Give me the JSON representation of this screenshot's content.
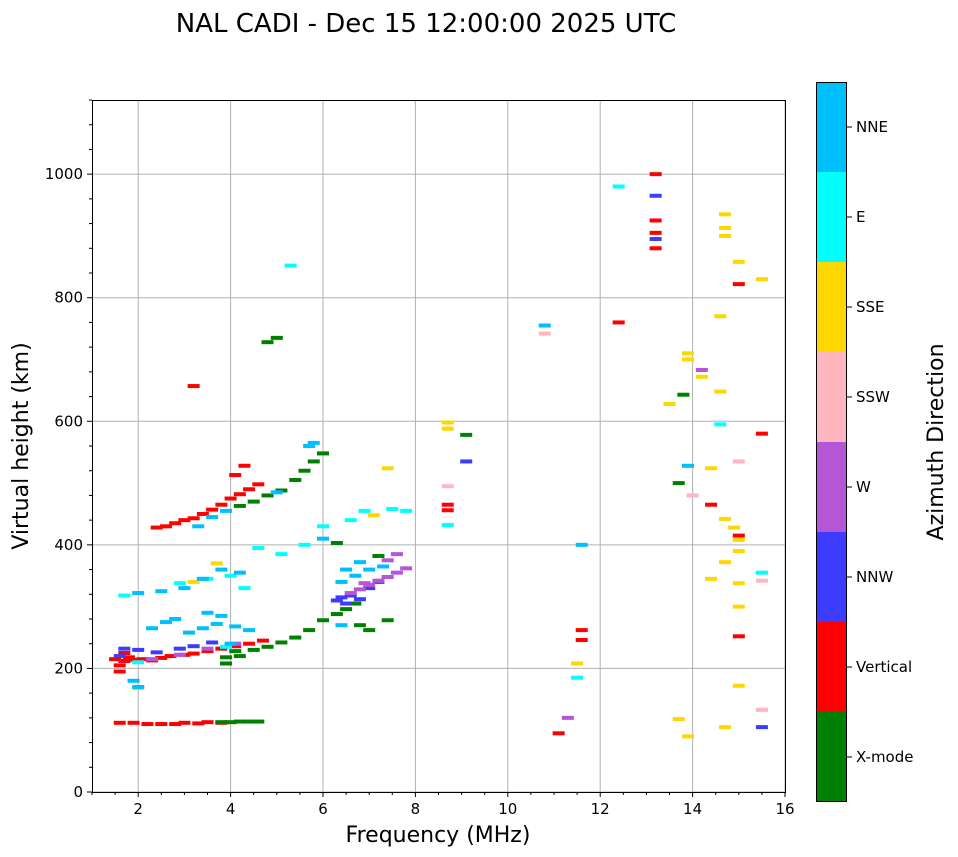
{
  "chart_data": {
    "type": "scatter",
    "title": "NAL CADI - Dec 15 12:00:00 2025 UTC",
    "xlabel": "Frequency (MHz)",
    "ylabel": "Virtual height (km)",
    "xlim": [
      1,
      16
    ],
    "ylim": [
      0,
      1120
    ],
    "xticks": [
      2,
      4,
      6,
      8,
      10,
      12,
      14,
      16
    ],
    "yticks": [
      0,
      200,
      400,
      600,
      800,
      1000
    ],
    "grid": true,
    "colorbar": {
      "title": "Azimuth Direction",
      "categories": [
        {
          "name": "X-mode",
          "color": "#008000"
        },
        {
          "name": "Vertical",
          "color": "#ff0000"
        },
        {
          "name": "NNW",
          "color": "#3c3cff"
        },
        {
          "name": "W",
          "color": "#b556d6"
        },
        {
          "name": "SSW",
          "color": "#ffb6c1"
        },
        {
          "name": "SSE",
          "color": "#ffd700"
        },
        {
          "name": "E",
          "color": "#00ffff"
        },
        {
          "name": "NNE",
          "color": "#00bfff"
        }
      ]
    },
    "series": [
      {
        "name": "Vertical",
        "points": [
          [
            1.6,
            112
          ],
          [
            1.9,
            112
          ],
          [
            2.2,
            110
          ],
          [
            2.5,
            110
          ],
          [
            2.8,
            110
          ],
          [
            3.0,
            112
          ],
          [
            3.3,
            111
          ],
          [
            3.5,
            113
          ],
          [
            3.8,
            112
          ],
          [
            1.5,
            215
          ],
          [
            1.7,
            212
          ],
          [
            1.9,
            214
          ],
          [
            2.1,
            215
          ],
          [
            2.3,
            213
          ],
          [
            2.5,
            217
          ],
          [
            2.7,
            220
          ],
          [
            3.0,
            222
          ],
          [
            3.2,
            224
          ],
          [
            3.5,
            228
          ],
          [
            3.8,
            232
          ],
          [
            4.1,
            236
          ],
          [
            4.4,
            240
          ],
          [
            4.7,
            245
          ],
          [
            1.6,
            205
          ],
          [
            1.6,
            195
          ],
          [
            1.7,
            225
          ],
          [
            1.8,
            218
          ],
          [
            2.4,
            428
          ],
          [
            2.6,
            430
          ],
          [
            2.8,
            435
          ],
          [
            3.0,
            440
          ],
          [
            3.2,
            443
          ],
          [
            3.4,
            450
          ],
          [
            3.6,
            457
          ],
          [
            3.8,
            465
          ],
          [
            4.0,
            475
          ],
          [
            4.2,
            482
          ],
          [
            4.4,
            490
          ],
          [
            4.6,
            498
          ],
          [
            4.1,
            513
          ],
          [
            4.3,
            528
          ],
          [
            3.2,
            657
          ],
          [
            8.7,
            465
          ],
          [
            8.7,
            456
          ],
          [
            11.6,
            262
          ],
          [
            11.6,
            246
          ],
          [
            11.1,
            95
          ],
          [
            12.4,
            760
          ],
          [
            13.2,
            1000
          ],
          [
            13.2,
            925
          ],
          [
            13.2,
            905
          ],
          [
            13.2,
            880
          ],
          [
            14.4,
            465
          ],
          [
            15.0,
            822
          ],
          [
            15.0,
            415
          ],
          [
            15.0,
            252
          ],
          [
            15.5,
            580
          ]
        ]
      },
      {
        "name": "X-mode",
        "points": [
          [
            3.8,
            113
          ],
          [
            4.0,
            113
          ],
          [
            4.2,
            114
          ],
          [
            4.4,
            114
          ],
          [
            4.6,
            114
          ],
          [
            3.9,
            218
          ],
          [
            4.2,
            220
          ],
          [
            4.5,
            230
          ],
          [
            4.8,
            235
          ],
          [
            5.1,
            242
          ],
          [
            5.4,
            250
          ],
          [
            5.7,
            262
          ],
          [
            6.0,
            278
          ],
          [
            6.3,
            288
          ],
          [
            6.5,
            296
          ],
          [
            6.7,
            305
          ],
          [
            3.9,
            208
          ],
          [
            4.1,
            228
          ],
          [
            4.2,
            463
          ],
          [
            4.5,
            470
          ],
          [
            4.8,
            480
          ],
          [
            5.1,
            488
          ],
          [
            5.4,
            505
          ],
          [
            5.6,
            520
          ],
          [
            5.8,
            535
          ],
          [
            6.0,
            548
          ],
          [
            4.8,
            728
          ],
          [
            5.0,
            735
          ],
          [
            6.8,
            270
          ],
          [
            7.0,
            262
          ],
          [
            7.4,
            278
          ],
          [
            9.1,
            578
          ],
          [
            13.7,
            500
          ],
          [
            13.8,
            643
          ],
          [
            7.2,
            382
          ],
          [
            6.3,
            403
          ]
        ]
      },
      {
        "name": "NNW",
        "points": [
          [
            1.6,
            220
          ],
          [
            1.7,
            232
          ],
          [
            2.0,
            230
          ],
          [
            2.4,
            226
          ],
          [
            2.9,
            232
          ],
          [
            3.2,
            236
          ],
          [
            3.6,
            242
          ],
          [
            6.4,
            315
          ],
          [
            6.6,
            318
          ],
          [
            6.8,
            312
          ],
          [
            6.5,
            305
          ],
          [
            6.3,
            310
          ],
          [
            7.0,
            330
          ],
          [
            7.2,
            340
          ],
          [
            9.1,
            535
          ],
          [
            13.2,
            965
          ],
          [
            13.2,
            895
          ],
          [
            15.5,
            105
          ]
        ]
      },
      {
        "name": "W",
        "points": [
          [
            6.6,
            322
          ],
          [
            6.8,
            328
          ],
          [
            7.0,
            335
          ],
          [
            7.2,
            342
          ],
          [
            7.4,
            348
          ],
          [
            7.6,
            355
          ],
          [
            7.8,
            362
          ],
          [
            7.4,
            375
          ],
          [
            7.6,
            385
          ],
          [
            2.3,
            215
          ],
          [
            2.9,
            222
          ],
          [
            3.5,
            232
          ],
          [
            4.1,
            240
          ],
          [
            6.9,
            338
          ],
          [
            11.3,
            120
          ],
          [
            14.2,
            683
          ]
        ]
      },
      {
        "name": "SSW",
        "points": [
          [
            8.7,
            495
          ],
          [
            10.8,
            742
          ],
          [
            15.0,
            535
          ],
          [
            15.5,
            342
          ],
          [
            15.5,
            133
          ],
          [
            14.0,
            480
          ]
        ]
      },
      {
        "name": "SSE",
        "points": [
          [
            8.7,
            598
          ],
          [
            8.7,
            588
          ],
          [
            7.4,
            524
          ],
          [
            7.1,
            448
          ],
          [
            11.5,
            208
          ],
          [
            13.9,
            710
          ],
          [
            13.9,
            700
          ],
          [
            14.2,
            672
          ],
          [
            14.6,
            648
          ],
          [
            13.5,
            628
          ],
          [
            14.4,
            524
          ],
          [
            14.7,
            442
          ],
          [
            14.9,
            428
          ],
          [
            15.0,
            408
          ],
          [
            15.0,
            390
          ],
          [
            15.0,
            338
          ],
          [
            15.0,
            300
          ],
          [
            15.0,
            172
          ],
          [
            14.6,
            770
          ],
          [
            14.7,
            935
          ],
          [
            14.7,
            913
          ],
          [
            14.7,
            900
          ],
          [
            15.0,
            858
          ],
          [
            15.5,
            830
          ],
          [
            13.7,
            118
          ],
          [
            13.9,
            90
          ],
          [
            14.4,
            345
          ],
          [
            14.7,
            105
          ],
          [
            14.7,
            372
          ],
          [
            2.0,
            168
          ],
          [
            3.2,
            340
          ],
          [
            3.7,
            370
          ]
        ]
      },
      {
        "name": "E",
        "points": [
          [
            2.9,
            338
          ],
          [
            3.5,
            345
          ],
          [
            4.0,
            350
          ],
          [
            4.3,
            330
          ],
          [
            4.6,
            395
          ],
          [
            5.1,
            385
          ],
          [
            5.6,
            400
          ],
          [
            6.0,
            430
          ],
          [
            6.6,
            440
          ],
          [
            6.9,
            455
          ],
          [
            7.5,
            458
          ],
          [
            3.9,
            235
          ],
          [
            2.0,
            210
          ],
          [
            1.7,
            318
          ],
          [
            8.7,
            432
          ],
          [
            11.5,
            185
          ],
          [
            12.4,
            980
          ],
          [
            14.6,
            595
          ],
          [
            15.5,
            355
          ],
          [
            7.8,
            455
          ],
          [
            5.3,
            852
          ]
        ]
      },
      {
        "name": "NNE",
        "points": [
          [
            1.9,
            180
          ],
          [
            2.0,
            170
          ],
          [
            2.3,
            265
          ],
          [
            2.6,
            275
          ],
          [
            2.8,
            280
          ],
          [
            3.1,
            258
          ],
          [
            3.4,
            265
          ],
          [
            3.7,
            272
          ],
          [
            4.1,
            268
          ],
          [
            4.4,
            262
          ],
          [
            2.0,
            322
          ],
          [
            2.5,
            325
          ],
          [
            3.0,
            330
          ],
          [
            3.4,
            345
          ],
          [
            3.8,
            360
          ],
          [
            4.2,
            355
          ],
          [
            3.5,
            290
          ],
          [
            3.8,
            285
          ],
          [
            6.0,
            410
          ],
          [
            6.5,
            360
          ],
          [
            6.7,
            350
          ],
          [
            6.4,
            340
          ],
          [
            6.8,
            372
          ],
          [
            7.0,
            360
          ],
          [
            7.3,
            365
          ],
          [
            5.8,
            565
          ],
          [
            3.3,
            430
          ],
          [
            3.6,
            445
          ],
          [
            3.9,
            455
          ],
          [
            5.0,
            485
          ],
          [
            5.7,
            560
          ],
          [
            10.8,
            755
          ],
          [
            11.6,
            400
          ],
          [
            13.9,
            528
          ],
          [
            4.0,
            240
          ],
          [
            6.4,
            270
          ]
        ]
      }
    ]
  }
}
